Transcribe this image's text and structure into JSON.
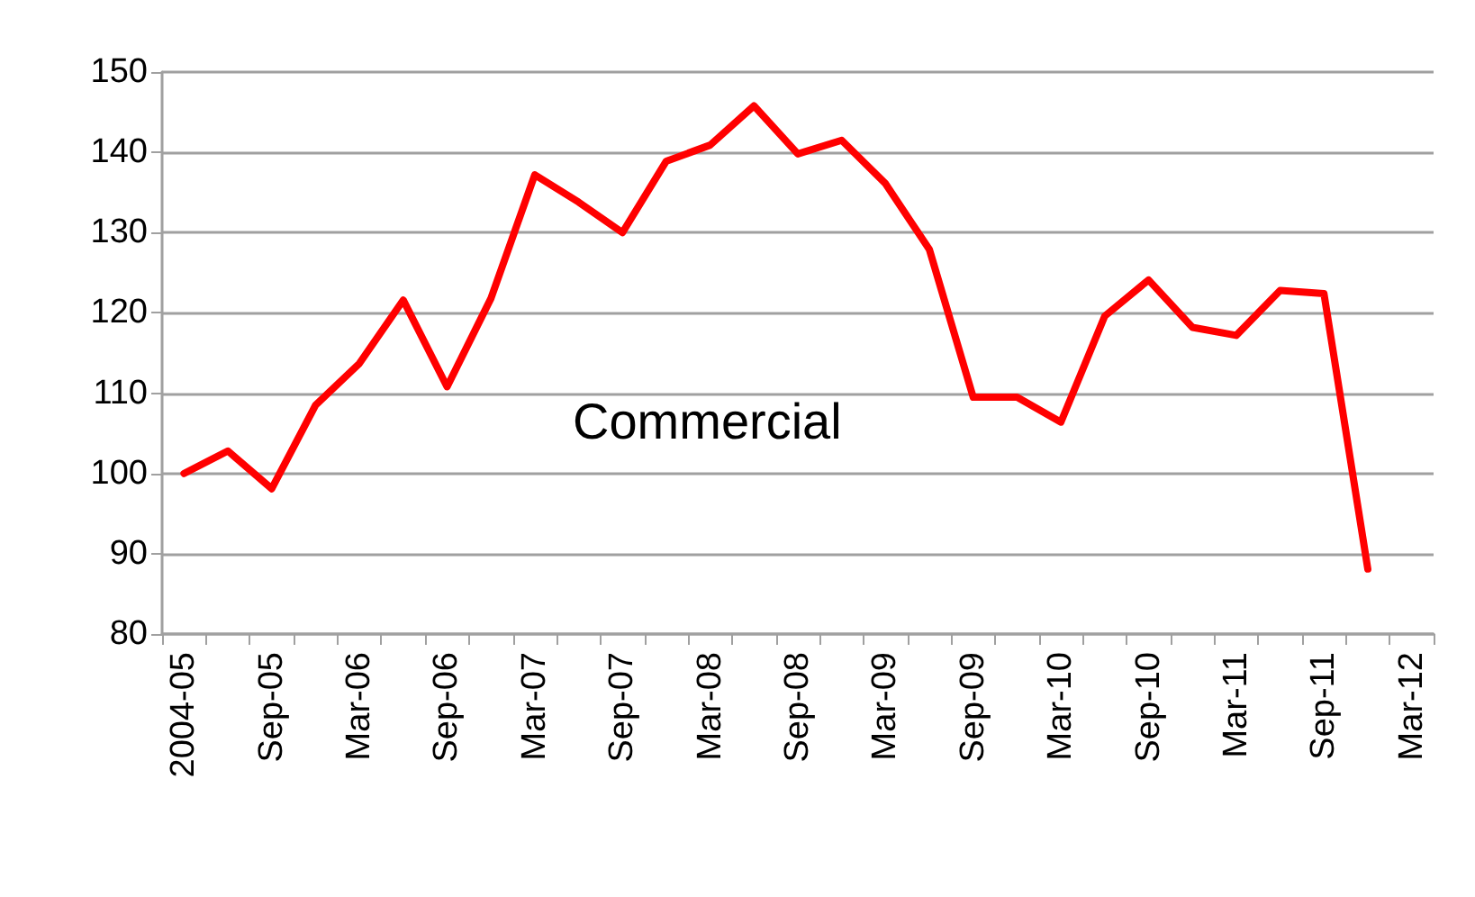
{
  "chart_data": {
    "type": "line",
    "categories": [
      "2004-05",
      null,
      "Sep-05",
      null,
      "Mar-06",
      null,
      "Sep-06",
      null,
      "Mar-07",
      null,
      "Sep-07",
      null,
      "Mar-08",
      null,
      "Sep-08",
      null,
      "Mar-09",
      null,
      "Sep-09",
      null,
      "Mar-10",
      null,
      "Sep-10",
      null,
      "Mar-11",
      null,
      "Sep-11",
      null,
      "Mar-12"
    ],
    "series": [
      {
        "color": "#ff0000",
        "values": [
          100.0,
          102.8,
          98.1,
          108.5,
          113.7,
          121.6,
          110.8,
          121.8,
          137.2,
          133.8,
          130.0,
          138.9,
          140.9,
          145.8,
          139.8,
          141.5,
          136.1,
          127.9,
          109.5,
          109.5,
          106.4,
          119.6,
          124.1,
          118.2,
          117.2,
          122.8,
          122.4,
          88.1,
          null
        ]
      }
    ],
    "ylim": [
      80,
      150
    ],
    "yticks": [
      80,
      90,
      100,
      110,
      120,
      130,
      140,
      150
    ],
    "grid": "y",
    "marker": "none",
    "line_style": "solid",
    "annotations": [
      "Commercial"
    ]
  }
}
